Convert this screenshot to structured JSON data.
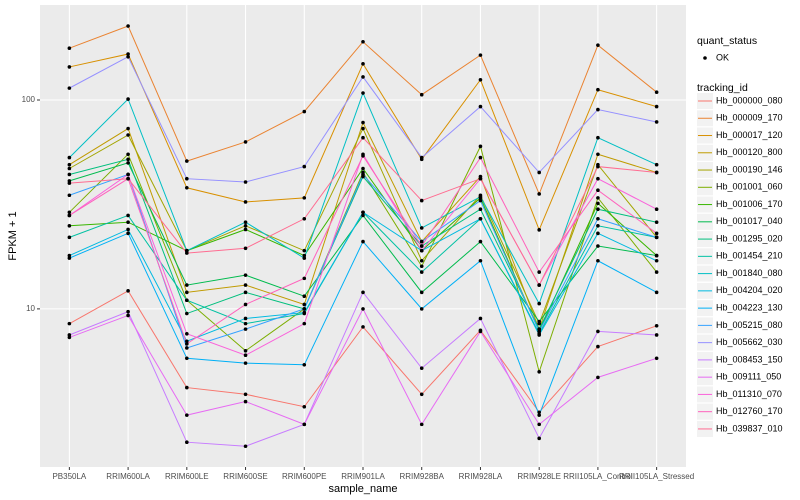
{
  "chart_data": {
    "type": "line",
    "x_label": "sample_name",
    "y_label": "FPKM + 1",
    "categories": [
      "PB350LA",
      "RRIM600LA",
      "RRIM600LE",
      "RRIM600SE",
      "RRIM600PE",
      "RRIM901LA",
      "RRIM928BA",
      "RRIM928LA",
      "RRIM928LE",
      "RRII105LA_Control",
      "RRII105LA_Stressed"
    ],
    "log_scale": true,
    "grid": true,
    "legend_position": "right",
    "ylim": [
      1.75,
      285
    ],
    "yticks": [
      10,
      100
    ],
    "status_legend": {
      "title": "quant_status",
      "labels": [
        "OK"
      ]
    },
    "legend_title": "tracking_id",
    "series": [
      {
        "name": "Hb_000000_080",
        "color": "#F8766D",
        "values": [
          8.5,
          12.2,
          4.2,
          3.9,
          3.4,
          8.2,
          3.9,
          7.9,
          3.2,
          6.6,
          8.3
        ]
      },
      {
        "name": "Hb_000009_170",
        "color": "#EA8331",
        "values": [
          177,
          226,
          51,
          63,
          88,
          190,
          106,
          164,
          35.5,
          183,
          109
        ]
      },
      {
        "name": "Hb_000017_120",
        "color": "#D89000",
        "values": [
          144,
          166,
          38,
          32.5,
          34,
          149,
          52,
          125,
          23.9,
          112,
          93
        ]
      },
      {
        "name": "Hb_000120_800",
        "color": "#C09B00",
        "values": [
          49,
          73,
          12,
          13,
          10.5,
          78,
          21,
          43,
          8,
          55,
          45
        ]
      },
      {
        "name": "Hb_000190_146",
        "color": "#A3A500",
        "values": [
          47,
          68,
          19,
          25,
          19,
          73,
          17,
          35,
          8.5,
          49,
          22
        ]
      },
      {
        "name": "Hb_001001_060",
        "color": "#7CAE00",
        "values": [
          29,
          55,
          11,
          6.3,
          10,
          45,
          16,
          60,
          5,
          34,
          15
        ]
      },
      {
        "name": "Hb_001006_170",
        "color": "#39B600",
        "values": [
          25,
          26,
          19,
          24,
          18,
          47,
          19,
          34,
          7.8,
          32,
          18
        ]
      },
      {
        "name": "Hb_001017_040",
        "color": "#00BB4E",
        "values": [
          41,
          50,
          13,
          14.5,
          11.5,
          28,
          12,
          21,
          8.7,
          20,
          18
        ]
      },
      {
        "name": "Hb_001295_020",
        "color": "#00BF7D",
        "values": [
          44,
          52,
          9.5,
          12,
          10,
          43,
          20,
          30,
          8,
          30,
          26
        ]
      },
      {
        "name": "Hb_001454_210",
        "color": "#00C1A3",
        "values": [
          22,
          28,
          11,
          8.5,
          9.5,
          29,
          15,
          27,
          7.6,
          25,
          22
        ]
      },
      {
        "name": "Hb_001840_080",
        "color": "#00BFC4",
        "values": [
          53,
          101,
          19,
          26,
          17.5,
          108,
          24.4,
          34.4,
          10.6,
          66,
          49
        ]
      },
      {
        "name": "Hb_004204_020",
        "color": "#00BAE0",
        "values": [
          18,
          24,
          7,
          9,
          9.6,
          29,
          19,
          27,
          7.5,
          23,
          17
        ]
      },
      {
        "name": "Hb_004223_130",
        "color": "#00B0F6",
        "values": [
          17.5,
          23,
          5.8,
          5.5,
          5.4,
          21,
          10,
          17,
          3.1,
          17,
          12
        ]
      },
      {
        "name": "Hb_005215_080",
        "color": "#35A2FF",
        "values": [
          35,
          44,
          6.5,
          8,
          10,
          44,
          21,
          33,
          7.8,
          27,
          22
        ]
      },
      {
        "name": "Hb_005662_030",
        "color": "#9590FF",
        "values": [
          114,
          161,
          42,
          40.5,
          48,
          129,
          53,
          93,
          45,
          90,
          78.5
        ]
      },
      {
        "name": "Hb_008453_150",
        "color": "#C77CFF",
        "values": [
          7.5,
          9.7,
          2.3,
          2.2,
          2.8,
          12,
          5.2,
          9,
          2.4,
          7.8,
          7.5
        ]
      },
      {
        "name": "Hb_009111_050",
        "color": "#E76BF3",
        "values": [
          7.3,
          9.3,
          3.1,
          3.6,
          2.8,
          10,
          2.8,
          7.8,
          2.8,
          4.7,
          5.8
        ]
      },
      {
        "name": "Hb_011310_070",
        "color": "#FA62DB",
        "values": [
          28,
          44,
          7.6,
          6,
          8.5,
          55,
          19,
          42,
          13,
          42,
          30
        ]
      },
      {
        "name": "Hb_012760_170",
        "color": "#FF62BC",
        "values": [
          28,
          42,
          6.8,
          10.5,
          14,
          54,
          20,
          53,
          15,
          37,
          23
        ]
      },
      {
        "name": "Hb_039837_010",
        "color": "#FF6C91",
        "values": [
          40,
          42,
          18.5,
          19.5,
          27,
          66,
          33,
          42,
          13,
          48,
          45
        ]
      }
    ]
  }
}
